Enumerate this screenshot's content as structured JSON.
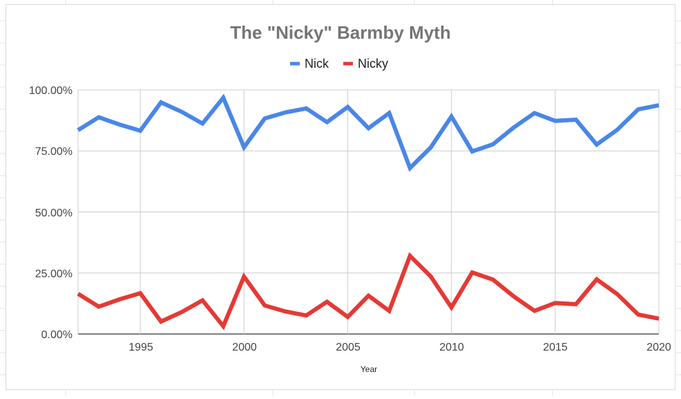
{
  "chart_data": {
    "type": "line",
    "title": "The \"Nicky\" Barmby Myth",
    "xlabel": "Year",
    "ylabel": "",
    "xlim": [
      1992,
      2020
    ],
    "ylim": [
      0,
      100
    ],
    "x_ticks": [
      "1995",
      "2000",
      "2005",
      "2010",
      "2015",
      "2020"
    ],
    "y_ticks": [
      "0.00%",
      "25.00%",
      "50.00%",
      "75.00%",
      "100.00%"
    ],
    "legend_position": "top",
    "grid": true,
    "x": [
      1992,
      1993,
      1994,
      1995,
      1996,
      1997,
      1998,
      1999,
      2000,
      2001,
      2002,
      2003,
      2004,
      2005,
      2006,
      2007,
      2008,
      2009,
      2010,
      2011,
      2012,
      2013,
      2014,
      2015,
      2016,
      2017,
      2018,
      2019,
      2020
    ],
    "series": [
      {
        "name": "Nick",
        "color": "#4a86e8",
        "values": [
          83.5,
          88.8,
          85.8,
          83.3,
          94.9,
          91.0,
          86.2,
          96.8,
          76.5,
          88.3,
          90.8,
          92.4,
          86.8,
          93.0,
          84.3,
          90.5,
          68.0,
          76.4,
          89.1,
          74.8,
          77.7,
          84.6,
          90.5,
          87.3,
          87.8,
          77.6,
          83.7,
          92.0,
          93.7
        ],
        "labels": [
          "Nick",
          "",
          "",
          "",
          "",
          "",
          "",
          "",
          "",
          "",
          "",
          "",
          "",
          "",
          "",
          "",
          "",
          "",
          "",
          "",
          "",
          "",
          "",
          "",
          "",
          "",
          "",
          "",
          ""
        ]
      },
      {
        "name": "Nicky",
        "color": "#e53935",
        "values": [
          16.5,
          11.2,
          14.2,
          16.7,
          5.1,
          9.0,
          13.8,
          3.2,
          23.5,
          11.7,
          9.2,
          7.6,
          13.2,
          7.0,
          15.7,
          9.5,
          32.0,
          23.6,
          10.9,
          25.2,
          22.3,
          15.4,
          9.5,
          12.7,
          12.2,
          22.4,
          16.3,
          8.0,
          6.3
        ]
      }
    ]
  }
}
